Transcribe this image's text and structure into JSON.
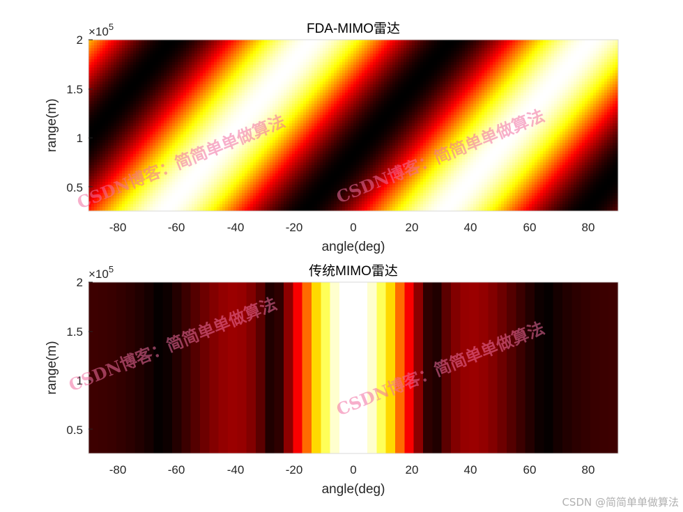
{
  "chart_data": [
    {
      "type": "heatmap",
      "title": "FDA-MIMO雷达",
      "xlabel": "angle(deg)",
      "ylabel": "range(m)",
      "xlim": [
        -90,
        90
      ],
      "ylim": [
        25000,
        200000
      ],
      "xticks": [
        "-80",
        "-60",
        "-40",
        "-20",
        "0",
        "20",
        "40",
        "60",
        "80"
      ],
      "yticks": [
        "0.5",
        "1",
        "1.5",
        "2"
      ],
      "yexponent_base": "×10",
      "yexponent_power": "5",
      "colormap": "hot",
      "pattern": "diagonal stripes: bright bands rise from lower-left to upper-right, repeating about every 95 degrees in angle"
    },
    {
      "type": "heatmap",
      "title": "传统MIMO雷达",
      "xlabel": "angle(deg)",
      "ylabel": "range(m)",
      "xlim": [
        -90,
        90
      ],
      "ylim": [
        25000,
        200000
      ],
      "xticks": [
        "-80",
        "-60",
        "-40",
        "-20",
        "0",
        "20",
        "40",
        "60",
        "80"
      ],
      "yticks": [
        "0.5",
        "1",
        "1.5",
        "2"
      ],
      "yexponent_base": "×10",
      "yexponent_power": "5",
      "colormap": "hot",
      "pattern": "vertical bands independent of range: white peak at 0 deg, dark minima near ±60 deg, red at edges"
    }
  ],
  "watermarks": {
    "overlay_text": "CSDN博客：简简单单做算法",
    "corner_text": "CSDN @简简单单做算法"
  }
}
